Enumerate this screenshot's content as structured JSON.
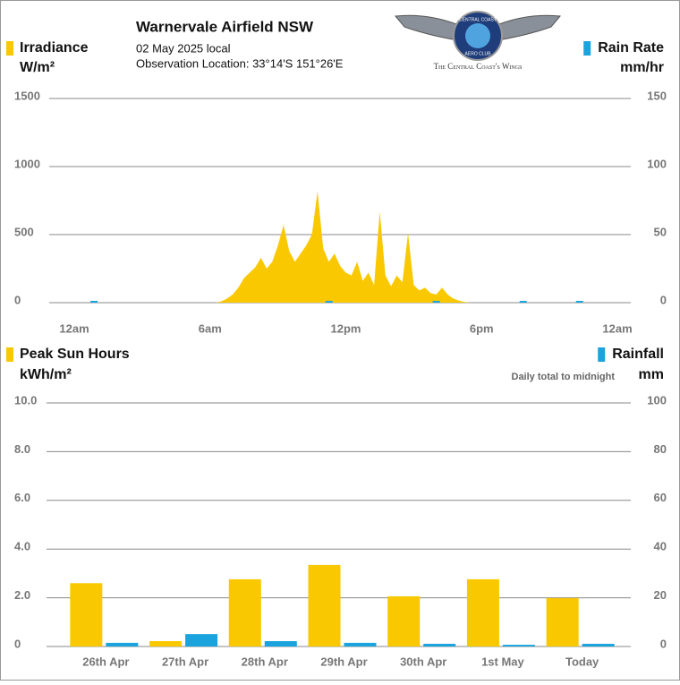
{
  "header": {
    "title": "Warnervale Airfield NSW",
    "date": "02 May 2025 local",
    "location": "Observation Location: 33°14'S 151°26'E",
    "logo_ring_top": "CENTRAL COAST",
    "logo_ring_bottom": "AERO CLUB",
    "logo_caption": "The Central Coast's Wings"
  },
  "chart_data": [
    {
      "type": "area",
      "ylabel": "W/m²",
      "y2label": "mm/hr",
      "xlim": [
        0,
        24
      ],
      "xticks": [
        {
          "value": 0,
          "label": "12am"
        },
        {
          "value": 6,
          "label": "6am"
        },
        {
          "value": 12,
          "label": "12pm"
        },
        {
          "value": 18,
          "label": "6pm"
        },
        {
          "value": 24,
          "label": "12am"
        }
      ],
      "ylim": [
        0,
        1500
      ],
      "yticks": [
        0,
        500,
        1000,
        1500
      ],
      "y2lim": [
        0,
        150
      ],
      "y2ticks": [
        0,
        50,
        100,
        150
      ],
      "grid": true,
      "series": [
        {
          "name": "Irradiance",
          "color": "#f9c800",
          "x": [
            6.0,
            6.25,
            6.5,
            6.75,
            7.0,
            7.25,
            7.5,
            7.75,
            8.0,
            8.25,
            8.5,
            8.75,
            9.0,
            9.25,
            9.5,
            9.75,
            10.0,
            10.25,
            10.5,
            10.75,
            11.0,
            11.25,
            11.5,
            11.75,
            12.0,
            12.25,
            12.5,
            12.75,
            13.0,
            13.25,
            13.5,
            13.75,
            14.0,
            14.25,
            14.5,
            14.75,
            15.0,
            15.25,
            15.5,
            15.75,
            16.0,
            16.25,
            16.5,
            16.75,
            17.0,
            17.25,
            17.5,
            17.75,
            18.0
          ],
          "values": [
            0,
            0,
            10,
            30,
            60,
            110,
            180,
            220,
            260,
            330,
            250,
            300,
            420,
            570,
            380,
            300,
            360,
            420,
            500,
            820,
            400,
            300,
            360,
            270,
            220,
            200,
            300,
            160,
            220,
            130,
            670,
            200,
            120,
            200,
            150,
            510,
            130,
            90,
            110,
            70,
            60,
            110,
            60,
            30,
            15,
            5,
            0,
            0,
            0
          ]
        },
        {
          "name": "Rain Rate",
          "color": "#1aa3dd",
          "axis": "y2",
          "x": [
            0.87,
            11.26,
            16.0,
            19.84,
            22.33
          ],
          "values": [
            0,
            0,
            0,
            0,
            0
          ]
        }
      ]
    },
    {
      "type": "bar",
      "ylabel": "kWh/m²",
      "y2label": "mm",
      "annotation": "Daily total to midnight",
      "categories": [
        "26th Apr",
        "27th Apr",
        "28th Apr",
        "29th Apr",
        "30th Apr",
        "1st May",
        "Today"
      ],
      "ylim": [
        0,
        10
      ],
      "yticks": [
        0,
        {
          "value": 2,
          "label": "2.0"
        },
        {
          "value": 4,
          "label": "4.0"
        },
        {
          "value": 6,
          "label": "6.0"
        },
        {
          "value": 8,
          "label": "8.0"
        },
        {
          "value": 10,
          "label": "10.0"
        }
      ],
      "y2lim": [
        0,
        100
      ],
      "y2ticks": [
        0,
        20,
        40,
        60,
        80,
        100
      ],
      "grid": true,
      "series": [
        {
          "name": "Peak Sun Hours",
          "color": "#f9c800",
          "values": [
            2.6,
            0.22,
            2.76,
            3.35,
            2.06,
            2.76,
            1.99
          ]
        },
        {
          "name": "Rainfall",
          "color": "#1aa3dd",
          "axis": "y2",
          "values": [
            1.5,
            5.1,
            2.2,
            1.5,
            1.1,
            0.7,
            1.1
          ]
        }
      ]
    }
  ]
}
